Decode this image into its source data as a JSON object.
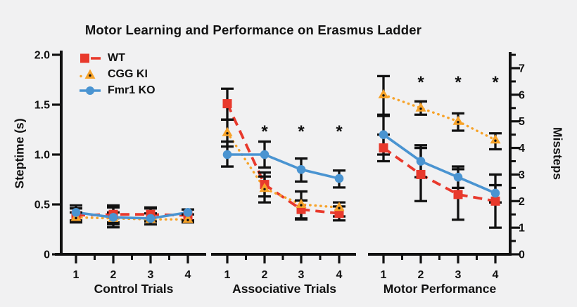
{
  "colors": {
    "wt": "#e8392c",
    "cgg_ki": "#f7a329",
    "fmr1_ko": "#4a94d1",
    "ink": "#111111",
    "background": "#f1f1f2"
  },
  "axes": {
    "left": {
      "label": "Steptime (s)",
      "tick_labels": [
        "0",
        "0.5",
        "1.0",
        "1.5",
        "2.0"
      ],
      "tick_values": [
        0,
        0.5,
        1.0,
        1.5,
        2.0
      ],
      "range": [
        0,
        2
      ]
    },
    "right": {
      "label": "Missteps",
      "tick_labels": [
        "0",
        "1",
        "2",
        "3",
        "4",
        "5",
        "6",
        "7"
      ],
      "tick_values": [
        0,
        1,
        2,
        3,
        4,
        5,
        6,
        7
      ],
      "minor_step": 0.5,
      "range": [
        0,
        7
      ]
    }
  },
  "legend": [
    {
      "label": "WT",
      "color": "#e8392c",
      "marker": "square",
      "line": "dashed"
    },
    {
      "label": "CGG KI",
      "color": "#f7a329",
      "marker": "triangle",
      "line": "dotted"
    },
    {
      "label": "Fmr1 KO",
      "color": "#4a94d1",
      "marker": "circle",
      "line": "solid"
    }
  ],
  "chart_data": {
    "type": "line",
    "title": "Motor Learning and Performance on Erasmus Ladder",
    "significance_symbol": "*",
    "panels": [
      {
        "title": "Control Trials",
        "x": [
          "1",
          "2",
          "3",
          "4"
        ],
        "y_axis": "Steptime (s)",
        "ylim": [
          0,
          2
        ],
        "series": [
          {
            "name": "WT",
            "values": [
              0.39,
              0.4,
              0.4,
              0.39
            ],
            "err_lo": [
              0.34,
              0.32,
              0.33,
              0.34
            ],
            "err_hi": [
              0.46,
              0.47,
              0.47,
              0.45
            ]
          },
          {
            "name": "CGG KI",
            "values": [
              0.37,
              0.36,
              0.35,
              0.35
            ],
            "err_lo": [
              0.32,
              0.3,
              0.3,
              0.32
            ],
            "err_hi": [
              0.42,
              0.42,
              0.41,
              0.4
            ]
          },
          {
            "name": "Fmr1 KO",
            "values": [
              0.42,
              0.37,
              0.36,
              0.42
            ],
            "err_lo": [
              0.33,
              0.27,
              0.3,
              0.34
            ],
            "err_hi": [
              0.49,
              0.49,
              0.46,
              0.45
            ]
          }
        ],
        "significant_trials": []
      },
      {
        "title": "Associative Trials",
        "x": [
          "1",
          "2",
          "3",
          "4"
        ],
        "y_axis": "Steptime (s)",
        "ylim": [
          0,
          2
        ],
        "series": [
          {
            "name": "WT",
            "values": [
              1.51,
              0.7,
              0.45,
              0.41
            ],
            "err_lo": [
              1.35,
              0.58,
              0.36,
              0.34
            ],
            "err_hi": [
              1.66,
              0.82,
              0.54,
              0.48
            ]
          },
          {
            "name": "CGG KI",
            "values": [
              1.22,
              0.66,
              0.5,
              0.47
            ],
            "err_lo": [
              1.08,
              0.52,
              0.35,
              0.38
            ],
            "err_hi": [
              1.35,
              0.78,
              0.63,
              0.52
            ]
          },
          {
            "name": "Fmr1 KO",
            "values": [
              1.0,
              1.0,
              0.85,
              0.76
            ],
            "err_lo": [
              0.88,
              0.87,
              0.73,
              0.67
            ],
            "err_hi": [
              1.13,
              1.13,
              0.96,
              0.84
            ]
          }
        ],
        "significant_trials": [
          2,
          3,
          4
        ]
      },
      {
        "title": "Motor Performance",
        "x": [
          "1",
          "2",
          "3",
          "4"
        ],
        "y_axis": "Missteps",
        "ylim": [
          0,
          7
        ],
        "series": [
          {
            "name": "WT",
            "values": [
              4.0,
              3.0,
              2.25,
              2.0
            ],
            "err_lo": [
              3.5,
              2.0,
              1.3,
              1.0
            ],
            "err_hi": [
              4.5,
              4.0,
              3.2,
              3.0
            ]
          },
          {
            "name": "CGG KI",
            "values": [
              6.0,
              5.5,
              5.0,
              4.3
            ],
            "err_lo": [
              5.25,
              5.25,
              4.65,
              3.95
            ],
            "err_hi": [
              6.7,
              5.75,
              5.3,
              4.55
            ]
          },
          {
            "name": "Fmr1 KO",
            "values": [
              4.5,
              3.5,
              2.9,
              2.3
            ],
            "err_lo": [
              3.75,
              2.9,
              2.5,
              1.95
            ],
            "err_hi": [
              5.2,
              4.1,
              3.3,
              2.6
            ]
          }
        ],
        "significant_trials": [
          2,
          3,
          4
        ]
      }
    ]
  }
}
